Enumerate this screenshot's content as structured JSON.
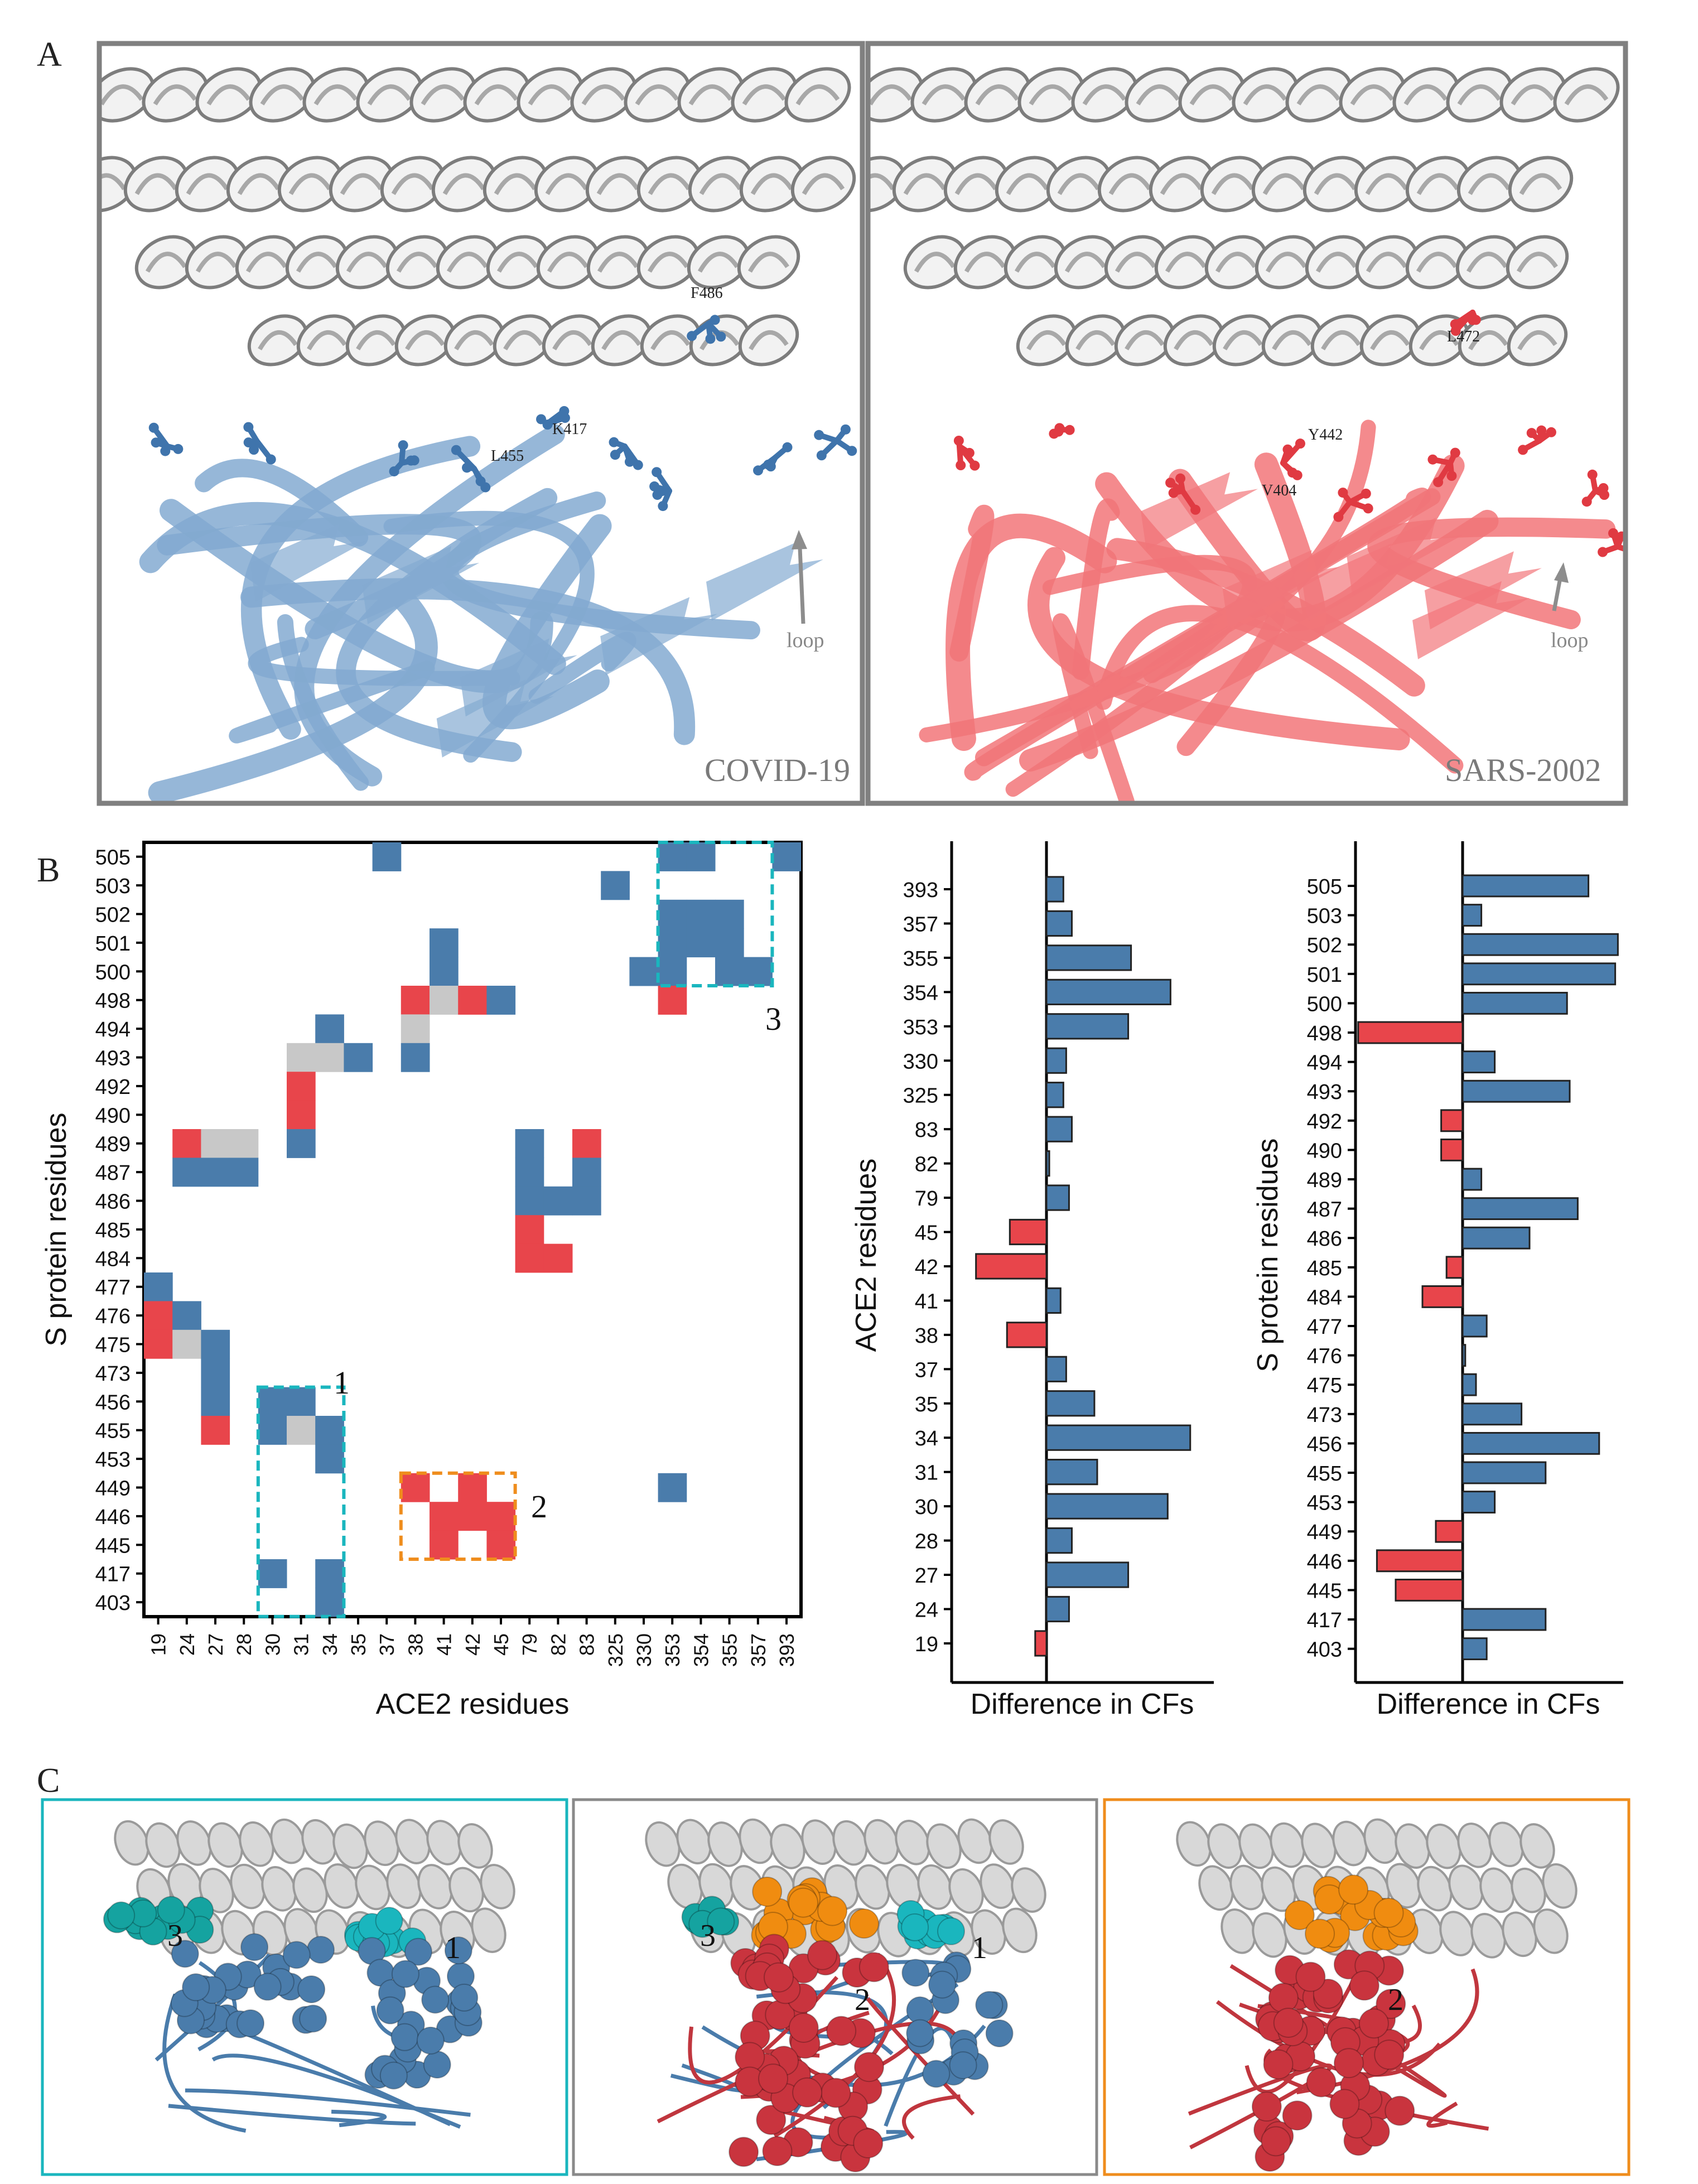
{
  "colors": {
    "blue": "#4a7cab",
    "red": "#e8454b",
    "gray": "#c8c8c8",
    "cyan": "#1ab6be",
    "orange": "#ef8d1d",
    "frame": "#808080",
    "covid_protein": "#5b8ec2",
    "sars_protein": "#ee5055",
    "orange_sphere": "#f08c10",
    "teal_sphere": "#15a3a0",
    "crimson_sphere": "#c9343e"
  },
  "panels": {
    "A": {
      "letter": "A",
      "left": {
        "caption": "COVID-19",
        "loop": "loop",
        "residues": [
          "F486",
          "K417",
          "L455"
        ]
      },
      "right": {
        "caption": "SARS-2002",
        "loop": "loop",
        "residues": [
          "L472",
          "Y442",
          "V404"
        ]
      }
    },
    "B": {
      "letter": "B",
      "box_labels": [
        "1",
        "2",
        "3"
      ]
    },
    "C": {
      "letter": "C",
      "marker_labels": [
        "3",
        "1",
        "3",
        "2",
        "1",
        "2"
      ]
    }
  },
  "chart_data": [
    {
      "type": "heatmap",
      "xlabel": "ACE2 residues",
      "ylabel": "S protein residues",
      "x_categories": [
        "19",
        "24",
        "27",
        "28",
        "30",
        "31",
        "34",
        "35",
        "37",
        "38",
        "41",
        "42",
        "45",
        "79",
        "82",
        "83",
        "325",
        "330",
        "353",
        "354",
        "355",
        "357",
        "393"
      ],
      "y_categories": [
        "505",
        "503",
        "502",
        "501",
        "500",
        "498",
        "494",
        "493",
        "492",
        "490",
        "489",
        "487",
        "486",
        "485",
        "484",
        "477",
        "476",
        "475",
        "473",
        "456",
        "455",
        "453",
        "449",
        "446",
        "445",
        "417",
        "403"
      ],
      "legend": [
        "blue",
        "red",
        "gray"
      ],
      "cells": [
        {
          "x": "37",
          "y": "505",
          "c": "blue"
        },
        {
          "x": "353",
          "y": "505",
          "c": "blue"
        },
        {
          "x": "354",
          "y": "505",
          "c": "blue"
        },
        {
          "x": "393",
          "y": "505",
          "c": "blue"
        },
        {
          "x": "325",
          "y": "503",
          "c": "blue"
        },
        {
          "x": "353",
          "y": "502",
          "c": "blue"
        },
        {
          "x": "354",
          "y": "502",
          "c": "blue"
        },
        {
          "x": "355",
          "y": "502",
          "c": "blue"
        },
        {
          "x": "41",
          "y": "501",
          "c": "blue"
        },
        {
          "x": "353",
          "y": "501",
          "c": "blue"
        },
        {
          "x": "354",
          "y": "501",
          "c": "blue"
        },
        {
          "x": "355",
          "y": "501",
          "c": "blue"
        },
        {
          "x": "41",
          "y": "500",
          "c": "blue"
        },
        {
          "x": "330",
          "y": "500",
          "c": "blue"
        },
        {
          "x": "353",
          "y": "500",
          "c": "blue"
        },
        {
          "x": "355",
          "y": "500",
          "c": "blue"
        },
        {
          "x": "357",
          "y": "500",
          "c": "blue"
        },
        {
          "x": "38",
          "y": "498",
          "c": "red"
        },
        {
          "x": "41",
          "y": "498",
          "c": "gray"
        },
        {
          "x": "42",
          "y": "498",
          "c": "red"
        },
        {
          "x": "45",
          "y": "498",
          "c": "blue"
        },
        {
          "x": "353",
          "y": "498",
          "c": "red"
        },
        {
          "x": "34",
          "y": "494",
          "c": "blue"
        },
        {
          "x": "38",
          "y": "494",
          "c": "gray"
        },
        {
          "x": "31",
          "y": "493",
          "c": "gray"
        },
        {
          "x": "34",
          "y": "493",
          "c": "gray"
        },
        {
          "x": "35",
          "y": "493",
          "c": "blue"
        },
        {
          "x": "38",
          "y": "493",
          "c": "blue"
        },
        {
          "x": "31",
          "y": "492",
          "c": "red"
        },
        {
          "x": "31",
          "y": "490",
          "c": "red"
        },
        {
          "x": "24",
          "y": "489",
          "c": "red"
        },
        {
          "x": "27",
          "y": "489",
          "c": "gray"
        },
        {
          "x": "28",
          "y": "489",
          "c": "gray"
        },
        {
          "x": "31",
          "y": "489",
          "c": "blue"
        },
        {
          "x": "79",
          "y": "489",
          "c": "blue"
        },
        {
          "x": "83",
          "y": "489",
          "c": "red"
        },
        {
          "x": "24",
          "y": "487",
          "c": "blue"
        },
        {
          "x": "27",
          "y": "487",
          "c": "blue"
        },
        {
          "x": "28",
          "y": "487",
          "c": "blue"
        },
        {
          "x": "79",
          "y": "487",
          "c": "blue"
        },
        {
          "x": "83",
          "y": "487",
          "c": "blue"
        },
        {
          "x": "79",
          "y": "486",
          "c": "blue"
        },
        {
          "x": "82",
          "y": "486",
          "c": "blue"
        },
        {
          "x": "83",
          "y": "486",
          "c": "blue"
        },
        {
          "x": "79",
          "y": "485",
          "c": "red"
        },
        {
          "x": "79",
          "y": "484",
          "c": "red"
        },
        {
          "x": "82",
          "y": "484",
          "c": "red"
        },
        {
          "x": "19",
          "y": "477",
          "c": "blue"
        },
        {
          "x": "19",
          "y": "476",
          "c": "red"
        },
        {
          "x": "24",
          "y": "476",
          "c": "blue"
        },
        {
          "x": "19",
          "y": "475",
          "c": "red"
        },
        {
          "x": "24",
          "y": "475",
          "c": "gray"
        },
        {
          "x": "27",
          "y": "475",
          "c": "blue"
        },
        {
          "x": "27",
          "y": "473",
          "c": "blue"
        },
        {
          "x": "27",
          "y": "456",
          "c": "blue"
        },
        {
          "x": "30",
          "y": "456",
          "c": "blue"
        },
        {
          "x": "31",
          "y": "456",
          "c": "blue"
        },
        {
          "x": "27",
          "y": "455",
          "c": "red"
        },
        {
          "x": "30",
          "y": "455",
          "c": "blue"
        },
        {
          "x": "31",
          "y": "455",
          "c": "gray"
        },
        {
          "x": "34",
          "y": "455",
          "c": "blue"
        },
        {
          "x": "34",
          "y": "453",
          "c": "blue"
        },
        {
          "x": "38",
          "y": "449",
          "c": "red"
        },
        {
          "x": "42",
          "y": "449",
          "c": "red"
        },
        {
          "x": "353",
          "y": "449",
          "c": "blue"
        },
        {
          "x": "41",
          "y": "446",
          "c": "red"
        },
        {
          "x": "42",
          "y": "446",
          "c": "red"
        },
        {
          "x": "45",
          "y": "446",
          "c": "red"
        },
        {
          "x": "41",
          "y": "445",
          "c": "red"
        },
        {
          "x": "45",
          "y": "445",
          "c": "red"
        },
        {
          "x": "30",
          "y": "417",
          "c": "blue"
        },
        {
          "x": "34",
          "y": "417",
          "c": "blue"
        },
        {
          "x": "34",
          "y": "403",
          "c": "blue"
        }
      ],
      "boxes": [
        {
          "label": "1",
          "color": "cyan",
          "x_from": "30",
          "x_to": "34",
          "y_from": "456",
          "y_to": "403"
        },
        {
          "label": "2",
          "color": "orange",
          "x_from": "38",
          "x_to": "45",
          "y_from": "449",
          "y_to": "445"
        },
        {
          "label": "3",
          "color": "cyan",
          "x_from": "353",
          "x_to": "357",
          "y_from": "505",
          "y_to": "500"
        }
      ]
    },
    {
      "type": "bar",
      "orientation": "horizontal",
      "xlabel": "Difference in CFs",
      "ylabel": "ACE2 residues",
      "categories": [
        "393",
        "357",
        "355",
        "354",
        "353",
        "330",
        "325",
        "83",
        "82",
        "79",
        "45",
        "42",
        "41",
        "38",
        "37",
        "35",
        "34",
        "31",
        "30",
        "28",
        "27",
        "24",
        "19"
      ],
      "values": [
        0.06,
        0.09,
        0.3,
        0.44,
        0.29,
        0.07,
        0.06,
        0.09,
        0.01,
        0.08,
        -0.13,
        -0.25,
        0.05,
        -0.14,
        0.07,
        0.17,
        0.51,
        0.18,
        0.43,
        0.09,
        0.29,
        0.08,
        -0.04
      ],
      "xlim": [
        -0.33,
        0.6
      ]
    },
    {
      "type": "bar",
      "orientation": "horizontal",
      "xlabel": "Difference in CFs",
      "ylabel": "S protein residues",
      "categories": [
        "505",
        "503",
        "502",
        "501",
        "500",
        "498",
        "494",
        "493",
        "492",
        "490",
        "489",
        "487",
        "486",
        "485",
        "484",
        "477",
        "476",
        "475",
        "473",
        "456",
        "455",
        "453",
        "449",
        "446",
        "445",
        "417",
        "403"
      ],
      "values": [
        0.47,
        0.07,
        0.58,
        0.57,
        0.39,
        -0.39,
        0.12,
        0.4,
        -0.08,
        -0.08,
        0.07,
        0.43,
        0.25,
        -0.06,
        -0.15,
        0.09,
        0.01,
        0.05,
        0.22,
        0.51,
        0.31,
        0.12,
        -0.1,
        -0.32,
        -0.25,
        0.31,
        0.09
      ],
      "xlim": [
        -0.4,
        0.6
      ]
    }
  ]
}
